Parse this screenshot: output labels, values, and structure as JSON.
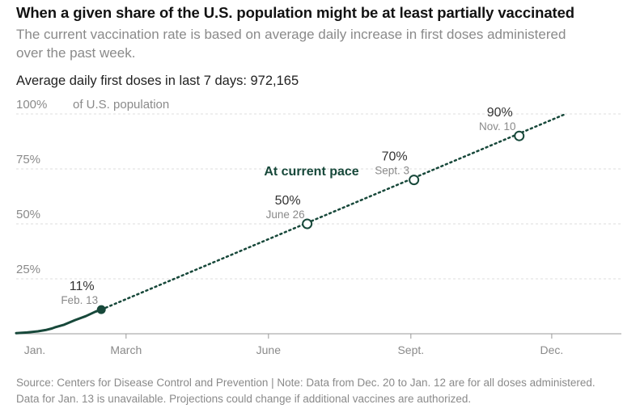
{
  "header": {
    "title": "When a given share of the U.S. population might be at least partially vaccinated",
    "subtitle": "The current vaccination rate is based on average daily increase in first doses administered over the past week.",
    "stat": "Average daily first doses in last 7 days: 972,165"
  },
  "footer": {
    "source": "Source: Centers for Disease Control and Prevention | Note: Data from Dec. 20 to Jan. 12 are for all doses administered. Data for Jan. 13 is unavailable. Projections could change if additional vaccines are authorized."
  },
  "colors": {
    "line": "#17483a",
    "grid": "#dddddd",
    "axis_text": "#8a8a8a",
    "label_text": "#333333",
    "date_text": "#8a8a8a"
  },
  "chart_data": {
    "type": "line",
    "y_unit_label": "of U.S. population",
    "ylim": [
      0,
      100
    ],
    "y_ticks": [
      {
        "value": 25,
        "label": "25%"
      },
      {
        "value": 50,
        "label": "50%"
      },
      {
        "value": 75,
        "label": "75%"
      },
      {
        "value": 100,
        "label": "100%"
      }
    ],
    "x_ticks": [
      {
        "date": "2021-01-01",
        "label": "Jan."
      },
      {
        "date": "2021-03-01",
        "label": "March"
      },
      {
        "date": "2021-06-01",
        "label": "June"
      },
      {
        "date": "2021-09-01",
        "label": "Sept."
      },
      {
        "date": "2021-12-01",
        "label": "Dec."
      }
    ],
    "xlim": [
      "2020-12-20",
      "2022-01-15"
    ],
    "grid": true,
    "series": [
      {
        "kind": "actual",
        "style": "solid",
        "points": [
          {
            "date": "2020-12-20",
            "value": 0.3
          },
          {
            "date": "2020-12-27",
            "value": 0.6
          },
          {
            "date": "2021-01-03",
            "value": 1.1
          },
          {
            "date": "2021-01-08",
            "value": 1.7
          },
          {
            "date": "2021-01-12",
            "value": 2.4
          },
          {
            "date": "2021-01-14",
            "value": 2.9
          },
          {
            "date": "2021-01-20",
            "value": 4.1
          },
          {
            "date": "2021-01-27",
            "value": 6.2
          },
          {
            "date": "2021-02-03",
            "value": 8.0
          },
          {
            "date": "2021-02-09",
            "value": 10.0
          },
          {
            "date": "2021-02-13",
            "value": 11.0
          }
        ]
      },
      {
        "kind": "projection",
        "name": "At current pace",
        "style": "dotted",
        "points": [
          {
            "date": "2021-02-13",
            "value": 11.0
          },
          {
            "date": "2021-12-10",
            "value": 100
          }
        ]
      }
    ],
    "annotations": [
      {
        "date": "2021-02-13",
        "value": 11,
        "pct_label": "11%",
        "date_label": "Feb. 13",
        "marker": "filled"
      },
      {
        "date": "2021-06-26",
        "value": 50,
        "pct_label": "50%",
        "date_label": "June 26",
        "marker": "open"
      },
      {
        "date": "2021-09-03",
        "value": 70,
        "pct_label": "70%",
        "date_label": "Sept. 3",
        "marker": "open"
      },
      {
        "date": "2021-11-10",
        "value": 90,
        "pct_label": "90%",
        "date_label": "Nov. 10",
        "marker": "open"
      }
    ]
  }
}
